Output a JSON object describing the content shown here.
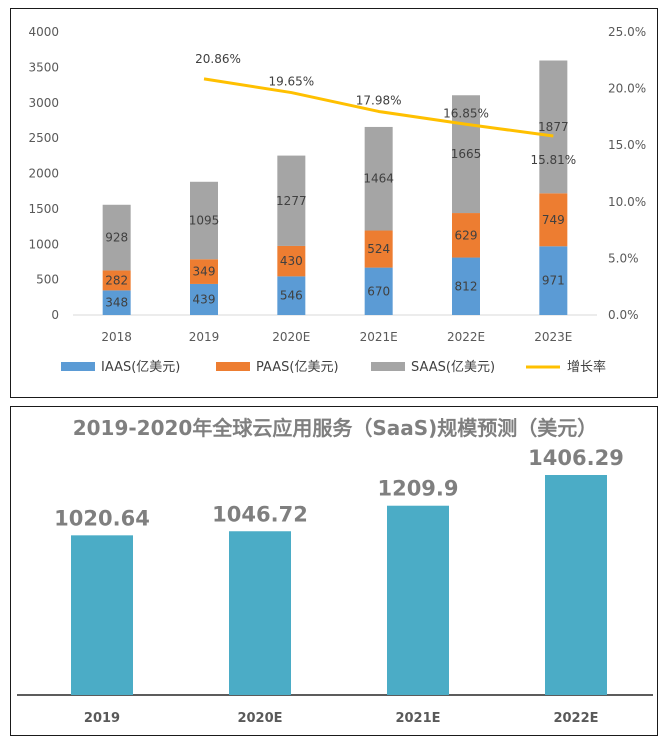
{
  "chart_data": [
    {
      "type": "bar",
      "stacked": true,
      "categories": [
        "2018",
        "2019",
        "2020E",
        "2021E",
        "2022E",
        "2023E"
      ],
      "series": [
        {
          "name": "IAAS(亿美元)",
          "color": "#5b9bd5",
          "values": [
            348,
            439,
            546,
            670,
            812,
            971
          ]
        },
        {
          "name": "PAAS(亿美元)",
          "color": "#ed7d31",
          "values": [
            282,
            349,
            430,
            524,
            629,
            749
          ]
        },
        {
          "name": "SAAS(亿美元)",
          "color": "#a5a5a5",
          "values": [
            928,
            1095,
            1277,
            1464,
            1665,
            1877
          ]
        }
      ],
      "line_series": {
        "name": "增长率",
        "color": "#ffc000",
        "axis": "secondary",
        "categories": [
          "2019",
          "2020E",
          "2021E",
          "2022E",
          "2023E"
        ],
        "values": [
          20.86,
          19.65,
          17.98,
          16.85,
          15.81
        ],
        "labels": [
          "20.86%",
          "19.65%",
          "17.98%",
          "16.85%",
          "15.81%"
        ]
      },
      "ylim": [
        0,
        4000
      ],
      "y_ticks": [
        "0",
        "500",
        "1000",
        "1500",
        "2000",
        "2500",
        "3000",
        "3500",
        "4000"
      ],
      "y2lim": [
        0,
        25
      ],
      "y2_ticks": [
        "0.0%",
        "5.0%",
        "10.0%",
        "15.0%",
        "20.0%",
        "25.0%"
      ],
      "legend_position": "bottom",
      "legend": [
        "IAAS(亿美元)",
        "PAAS(亿美元)",
        "SAAS(亿美元)",
        "增长率"
      ]
    },
    {
      "type": "bar",
      "title": "2019-2020年全球云应用服务（SaaS)规模预测（美元）",
      "categories": [
        "2019",
        "2020E",
        "2021E",
        "2022E"
      ],
      "values": [
        1020.64,
        1046.72,
        1209.9,
        1406.29
      ],
      "labels": [
        "1020.64",
        "1046.72",
        "1209.9",
        "1406.29"
      ],
      "color": "#4bacc6",
      "ylim": [
        0,
        1406.29
      ]
    }
  ]
}
